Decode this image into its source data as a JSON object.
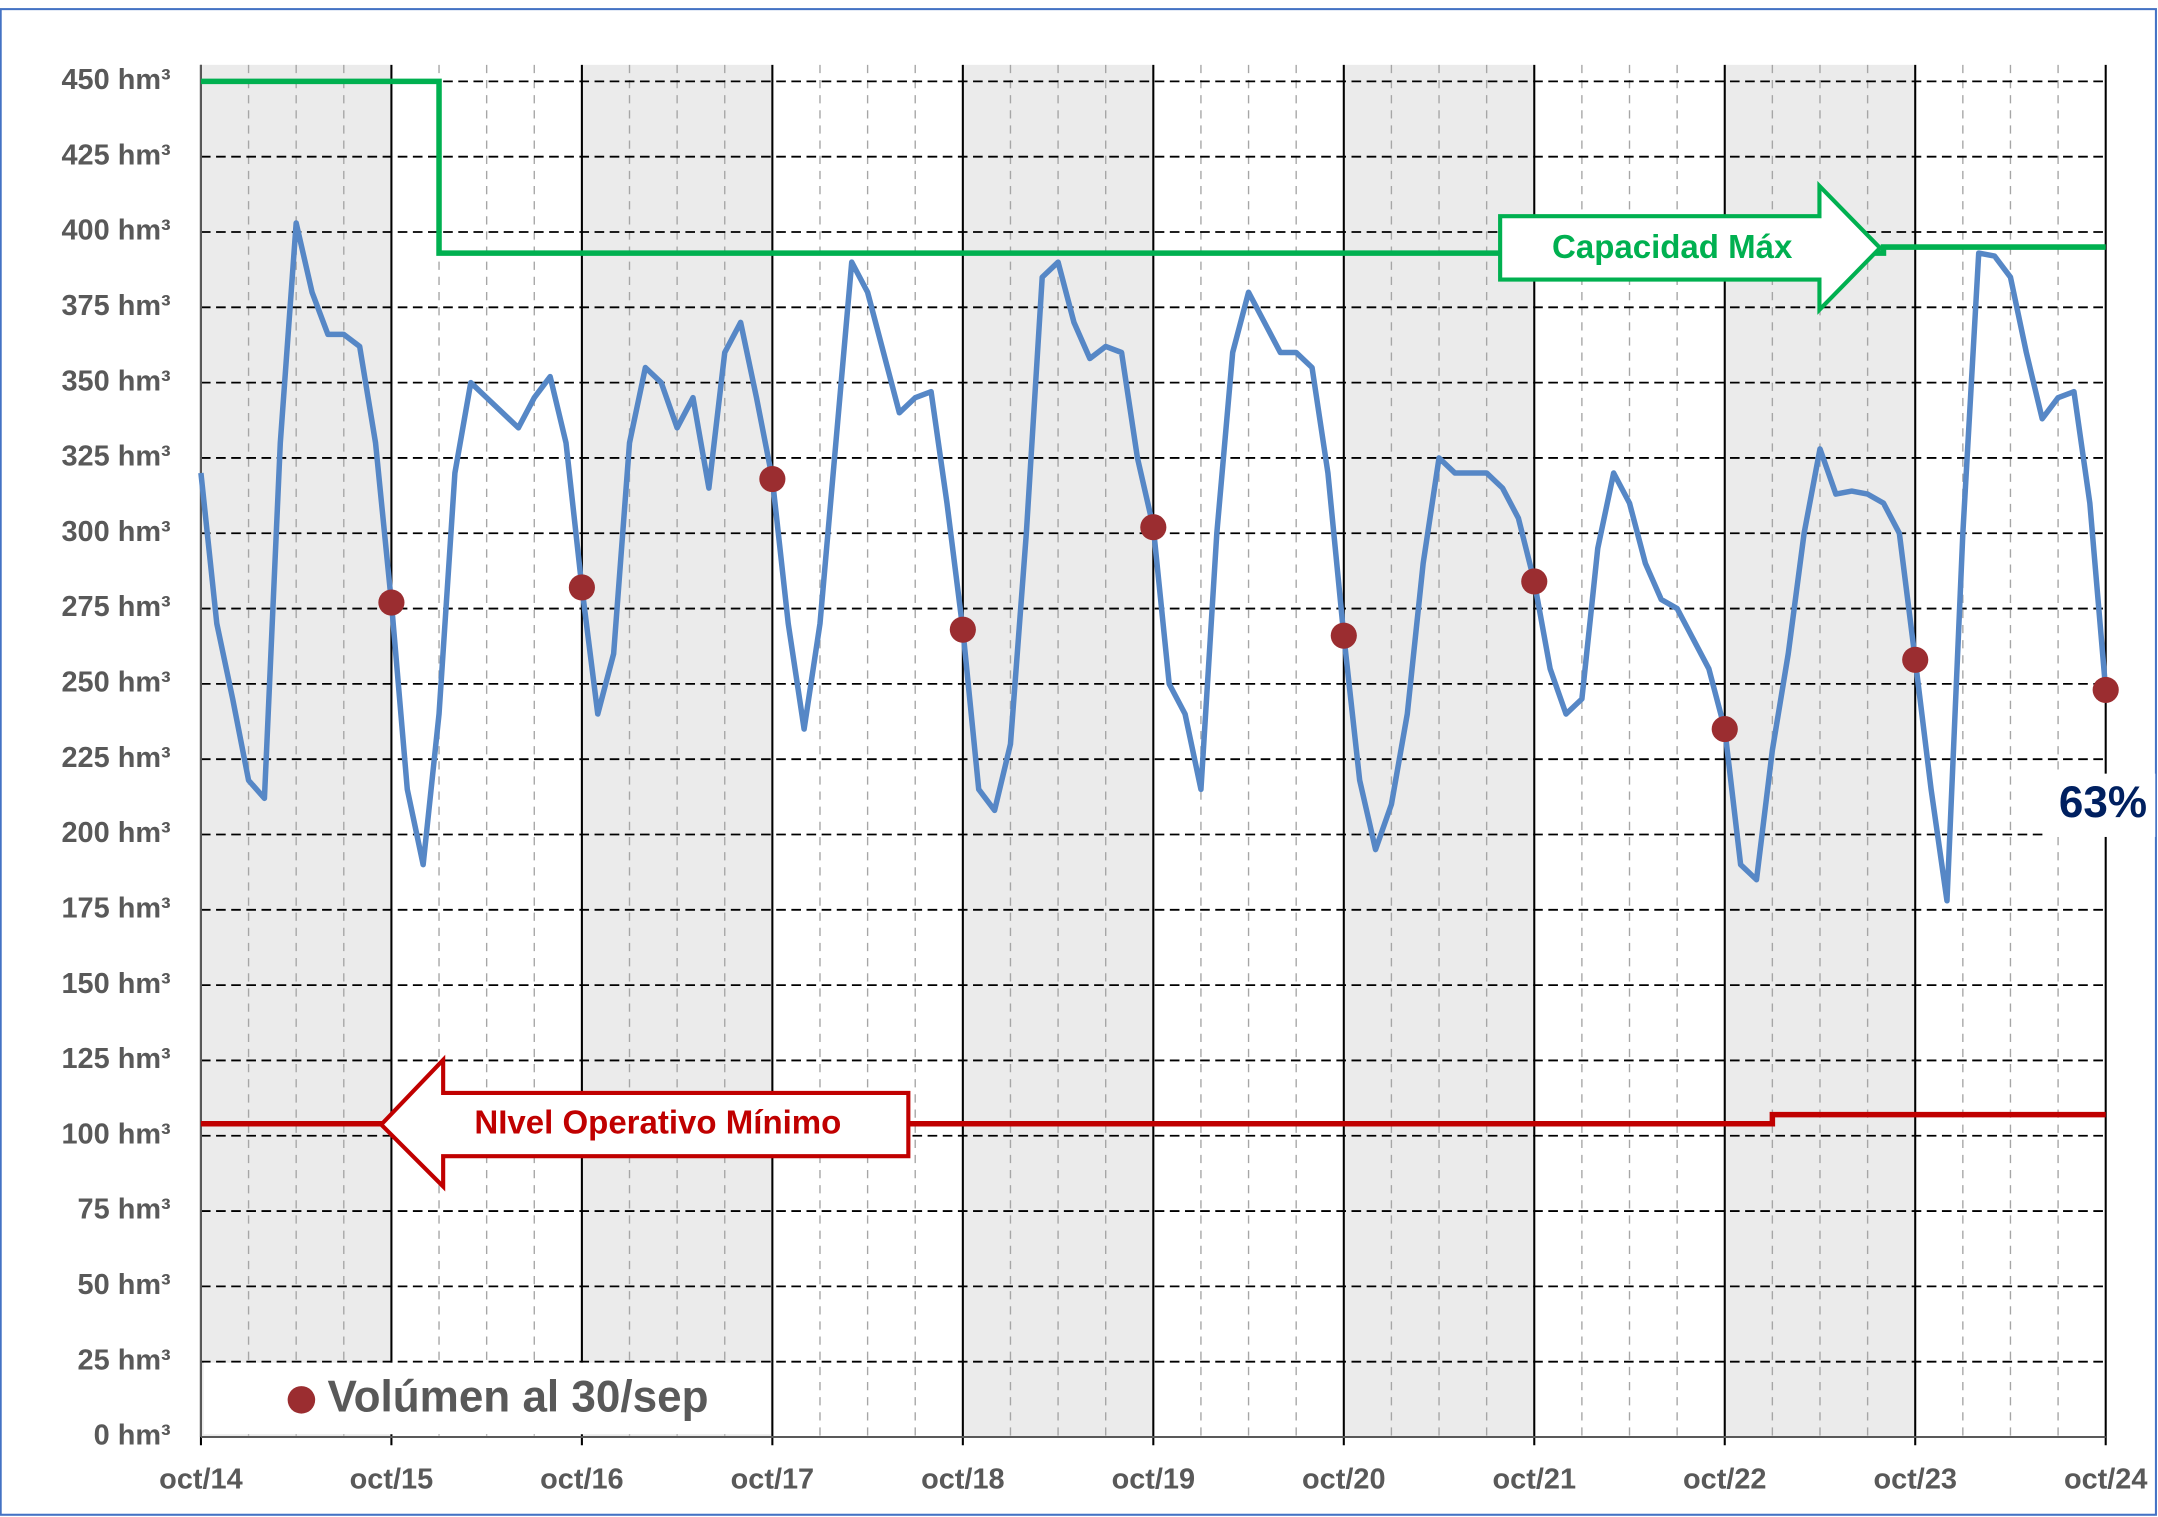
{
  "chart_data": {
    "type": "line",
    "categories": [
      "oct/14",
      null,
      null,
      null,
      null,
      null,
      null,
      null,
      null,
      null,
      null,
      null,
      "oct/15",
      null,
      null,
      null,
      null,
      null,
      null,
      null,
      null,
      null,
      null,
      null,
      "oct/16",
      null,
      null,
      null,
      null,
      null,
      null,
      null,
      null,
      null,
      null,
      null,
      "oct/17",
      null,
      null,
      null,
      null,
      null,
      null,
      null,
      null,
      null,
      null,
      null,
      "oct/18",
      null,
      null,
      null,
      null,
      null,
      null,
      null,
      null,
      null,
      null,
      null,
      "oct/19",
      null,
      null,
      null,
      null,
      null,
      null,
      null,
      null,
      null,
      null,
      null,
      "oct/20",
      null,
      null,
      null,
      null,
      null,
      null,
      null,
      null,
      null,
      null,
      null,
      "oct/21",
      null,
      null,
      null,
      null,
      null,
      null,
      null,
      null,
      null,
      null,
      null,
      "oct/22",
      null,
      null,
      null,
      null,
      null,
      null,
      null,
      null,
      null,
      null,
      null,
      "oct/23",
      null,
      null,
      null,
      null,
      null,
      null,
      null,
      null,
      null,
      null,
      null,
      "oct/24"
    ],
    "series": [
      {
        "color": "#5687c6",
        "style": "line",
        "values": [
          320,
          270,
          245,
          218,
          212,
          330,
          403,
          380,
          366,
          366,
          362,
          330,
          277,
          215,
          190,
          240,
          320,
          350,
          345,
          340,
          335,
          345,
          352,
          330,
          282,
          240,
          260,
          330,
          355,
          350,
          335,
          345,
          315,
          360,
          370,
          345,
          318,
          270,
          235,
          270,
          330,
          390,
          380,
          360,
          340,
          345,
          347,
          310,
          268,
          215,
          208,
          230,
          300,
          385,
          390,
          370,
          358,
          362,
          360,
          325,
          302,
          250,
          240,
          215,
          300,
          360,
          380,
          370,
          360,
          360,
          355,
          320,
          266,
          218,
          195,
          210,
          240,
          290,
          325,
          320,
          320,
          320,
          315,
          305,
          284,
          255,
          240,
          245,
          295,
          320,
          310,
          290,
          278,
          275,
          265,
          255,
          235,
          190,
          185,
          228,
          260,
          300,
          328,
          313,
          314,
          313,
          310,
          300,
          258,
          215,
          178,
          300,
          393,
          392,
          385,
          360,
          338,
          345,
          347,
          310,
          248
        ]
      },
      {
        "color": "#00b050",
        "style": "step",
        "values": [
          450,
          450,
          450,
          450,
          450,
          450,
          450,
          450,
          450,
          450,
          450,
          450,
          450,
          450,
          450,
          393,
          393,
          393,
          393,
          393,
          393,
          393,
          393,
          393,
          393,
          393,
          393,
          393,
          393,
          393,
          393,
          393,
          393,
          393,
          393,
          393,
          393,
          393,
          393,
          393,
          393,
          393,
          393,
          393,
          393,
          393,
          393,
          393,
          393,
          393,
          393,
          393,
          393,
          393,
          393,
          393,
          393,
          393,
          393,
          393,
          393,
          393,
          393,
          393,
          393,
          393,
          393,
          393,
          393,
          393,
          393,
          393,
          393,
          393,
          393,
          393,
          393,
          393,
          393,
          393,
          393,
          393,
          393,
          393,
          393,
          393,
          393,
          393,
          393,
          393,
          393,
          393,
          393,
          393,
          393,
          393,
          393,
          393,
          393,
          393,
          393,
          393,
          393,
          393,
          393,
          393,
          395,
          395,
          395,
          395,
          395,
          395,
          395,
          395,
          395,
          395,
          395,
          395,
          395,
          395,
          395
        ]
      },
      {
        "color": "#c00000",
        "style": "step",
        "values": [
          104,
          104,
          104,
          104,
          104,
          104,
          104,
          104,
          104,
          104,
          104,
          104,
          104,
          104,
          104,
          104,
          104,
          104,
          104,
          104,
          104,
          104,
          104,
          104,
          104,
          104,
          104,
          104,
          104,
          104,
          104,
          104,
          104,
          104,
          104,
          104,
          104,
          104,
          104,
          104,
          104,
          104,
          104,
          104,
          104,
          104,
          104,
          104,
          104,
          104,
          104,
          104,
          104,
          104,
          104,
          104,
          104,
          104,
          104,
          104,
          104,
          104,
          104,
          104,
          104,
          104,
          104,
          104,
          104,
          104,
          104,
          104,
          104,
          104,
          104,
          104,
          104,
          104,
          104,
          104,
          104,
          104,
          104,
          104,
          104,
          104,
          104,
          104,
          104,
          104,
          104,
          104,
          104,
          104,
          104,
          104,
          104,
          104,
          104,
          107,
          107,
          107,
          107,
          107,
          107,
          107,
          107,
          107,
          107,
          107,
          107,
          107,
          107,
          107,
          107,
          107,
          107,
          107,
          107,
          107,
          107
        ]
      },
      {
        "name": "Volúmen al 30/sep",
        "color": "#9b2d30",
        "style": "dots",
        "values": [
          null,
          null,
          null,
          null,
          null,
          null,
          null,
          null,
          null,
          null,
          null,
          null,
          277,
          null,
          null,
          null,
          null,
          null,
          null,
          null,
          null,
          null,
          null,
          null,
          282,
          null,
          null,
          null,
          null,
          null,
          null,
          null,
          null,
          null,
          null,
          null,
          318,
          null,
          null,
          null,
          null,
          null,
          null,
          null,
          null,
          null,
          null,
          null,
          268,
          null,
          null,
          null,
          null,
          null,
          null,
          null,
          null,
          null,
          null,
          null,
          302,
          null,
          null,
          null,
          null,
          null,
          null,
          null,
          null,
          null,
          null,
          null,
          266,
          null,
          null,
          null,
          null,
          null,
          null,
          null,
          null,
          null,
          null,
          null,
          284,
          null,
          null,
          null,
          null,
          null,
          null,
          null,
          null,
          null,
          null,
          null,
          235,
          null,
          null,
          null,
          null,
          null,
          null,
          null,
          null,
          null,
          null,
          null,
          258,
          null,
          null,
          null,
          null,
          null,
          null,
          null,
          null,
          null,
          null,
          null,
          248
        ]
      }
    ],
    "ylim": [
      0,
      450
    ],
    "yticks": [
      {
        "value": 0,
        "label": "0 hm³"
      },
      {
        "value": 25,
        "label": "25 hm³"
      },
      {
        "value": 50,
        "label": "50 hm³"
      },
      {
        "value": 75,
        "label": "75 hm³"
      },
      {
        "value": 100,
        "label": "100 hm³"
      },
      {
        "value": 125,
        "label": "125 hm³"
      },
      {
        "value": 150,
        "label": "150 hm³"
      },
      {
        "value": 175,
        "label": "175 hm³"
      },
      {
        "value": 200,
        "label": "200 hm³"
      },
      {
        "value": 225,
        "label": "225 hm³"
      },
      {
        "value": 250,
        "label": "250 hm³"
      },
      {
        "value": 275,
        "label": "275 hm³"
      },
      {
        "value": 300,
        "label": "300 hm³"
      },
      {
        "value": 325,
        "label": "325 hm³"
      },
      {
        "value": 350,
        "label": "350 hm³"
      },
      {
        "value": 375,
        "label": "375 hm³"
      },
      {
        "value": 400,
        "label": "400 hm³"
      },
      {
        "value": 425,
        "label": "425 hm³"
      },
      {
        "value": 450,
        "label": "450 hm³"
      }
    ],
    "grid": true,
    "annotations": [
      {
        "text": "Capacidad  Máx",
        "color": "#00b050"
      },
      {
        "text": "NIvel Operativo Mínimo",
        "color": "#c00000"
      },
      {
        "text": "63%",
        "color": "#002060"
      }
    ],
    "legend": "lower left"
  }
}
